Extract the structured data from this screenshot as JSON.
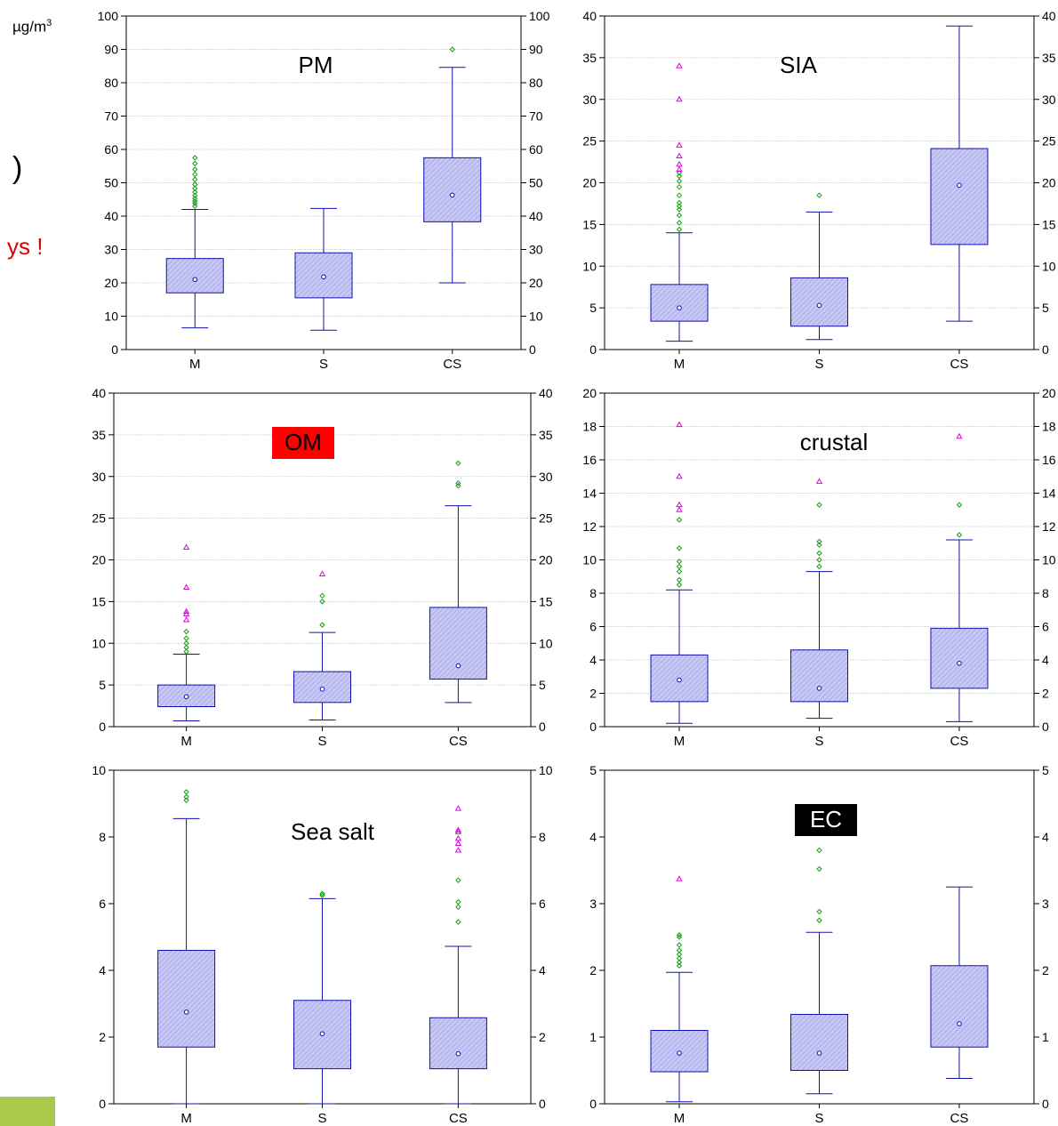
{
  "page": {
    "unit_label": "µg/m",
    "unit_superscript": "3",
    "paren_fragment": ")",
    "days_fragment": "ys !",
    "accent_bar_color": "#a9c94a"
  },
  "chart_style": {
    "box_fill": "#c8c8f4",
    "box_stroke": "#1010b0",
    "whisker_color": "#1010b0",
    "mild_outlier_color": "#15a015",
    "extreme_outlier_color": "#e000e0",
    "grid_color": "#bfbfbf"
  },
  "chart_data": [
    {
      "type": "box",
      "title": "PM",
      "title_style": "plain",
      "categories": [
        "M",
        "S",
        "CS"
      ],
      "ylim": [
        0,
        100
      ],
      "yticks": [
        0,
        10,
        20,
        30,
        40,
        50,
        60,
        70,
        80,
        90,
        100
      ],
      "right_axis": true,
      "grid": true,
      "boxes": [
        {
          "category": "M",
          "whisker_low": 6.5,
          "q1": 17,
          "median": 21,
          "q3": 27.3,
          "whisker_high": 42,
          "mild_outliers": [
            43,
            43.8,
            44.5,
            45.3,
            46.2,
            47.2,
            48.3,
            49.5,
            51,
            52.5,
            54,
            55.8,
            57.5
          ],
          "extreme_outliers": []
        },
        {
          "category": "S",
          "whisker_low": 5.8,
          "q1": 15.5,
          "median": 21.8,
          "q3": 29,
          "whisker_high": 42.3,
          "mild_outliers": [],
          "extreme_outliers": []
        },
        {
          "category": "CS",
          "whisker_low": 20,
          "q1": 38.3,
          "median": 46.3,
          "q3": 57.5,
          "whisker_high": 84.6,
          "mild_outliers": [
            90
          ],
          "extreme_outliers": []
        }
      ]
    },
    {
      "type": "box",
      "title": "SIA",
      "title_style": "plain",
      "categories": [
        "M",
        "S",
        "CS"
      ],
      "ylim": [
        0,
        40
      ],
      "yticks": [
        0,
        5,
        10,
        15,
        20,
        25,
        30,
        35,
        40
      ],
      "right_axis": true,
      "grid": true,
      "boxes": [
        {
          "category": "M",
          "whisker_low": 1,
          "q1": 3.4,
          "median": 5,
          "q3": 7.8,
          "whisker_high": 14,
          "mild_outliers": [
            14.4,
            15.2,
            16.1,
            16.8,
            17.2,
            17.6,
            18.5,
            19.5,
            20.2,
            20.8,
            21.2
          ],
          "extreme_outliers": [
            21.6,
            22.2,
            23.2,
            24.5,
            30,
            34
          ]
        },
        {
          "category": "S",
          "whisker_low": 1.2,
          "q1": 2.8,
          "median": 5.3,
          "q3": 8.6,
          "whisker_high": 16.5,
          "mild_outliers": [
            18.5
          ],
          "extreme_outliers": []
        },
        {
          "category": "CS",
          "whisker_low": 3.4,
          "q1": 12.6,
          "median": 19.7,
          "q3": 24.1,
          "whisker_high": 38.8,
          "mild_outliers": [],
          "extreme_outliers": []
        }
      ]
    },
    {
      "type": "box",
      "title": "OM",
      "title_style": "red",
      "categories": [
        "M",
        "S",
        "CS"
      ],
      "ylim": [
        0,
        40
      ],
      "yticks": [
        0,
        5,
        10,
        15,
        20,
        25,
        30,
        35,
        40
      ],
      "right_axis": true,
      "grid": true,
      "boxes": [
        {
          "category": "M",
          "whisker_low": 0.7,
          "q1": 2.4,
          "median": 3.6,
          "q3": 5,
          "whisker_high": 8.7,
          "mild_outliers": [
            9,
            9.5,
            10,
            10.6,
            11.4
          ],
          "extreme_outliers": [
            12.8,
            13.5,
            13.8,
            16.7,
            21.5
          ]
        },
        {
          "category": "S",
          "whisker_low": 0.8,
          "q1": 2.9,
          "median": 4.5,
          "q3": 6.6,
          "whisker_high": 11.3,
          "mild_outliers": [
            12.2,
            15,
            15.7
          ],
          "extreme_outliers": [
            18.3
          ]
        },
        {
          "category": "CS",
          "whisker_low": 2.9,
          "q1": 5.7,
          "median": 7.3,
          "q3": 14.3,
          "whisker_high": 26.5,
          "mild_outliers": [
            28.9,
            29.2,
            31.6
          ],
          "extreme_outliers": []
        }
      ]
    },
    {
      "type": "box",
      "title": "crustal",
      "title_style": "plain",
      "categories": [
        "M",
        "S",
        "CS"
      ],
      "ylim": [
        0,
        20
      ],
      "yticks": [
        0,
        2,
        4,
        6,
        8,
        10,
        12,
        14,
        16,
        18,
        20
      ],
      "right_axis": true,
      "grid": true,
      "boxes": [
        {
          "category": "M",
          "whisker_low": 0.2,
          "q1": 1.5,
          "median": 2.8,
          "q3": 4.3,
          "whisker_high": 8.2,
          "mild_outliers": [
            8.5,
            8.8,
            9.3,
            9.6,
            9.9,
            10.7,
            12.4
          ],
          "extreme_outliers": [
            13,
            13.3,
            15,
            18.1
          ]
        },
        {
          "category": "S",
          "whisker_low": 0.5,
          "q1": 1.5,
          "median": 2.3,
          "q3": 4.6,
          "whisker_high": 9.3,
          "mild_outliers": [
            9.6,
            10,
            10.4,
            10.9,
            11.1,
            13.3
          ],
          "extreme_outliers": [
            14.7
          ]
        },
        {
          "category": "CS",
          "whisker_low": 0.3,
          "q1": 2.3,
          "median": 3.8,
          "q3": 5.9,
          "whisker_high": 11.2,
          "mild_outliers": [
            11.5,
            13.3
          ],
          "extreme_outliers": [
            17.4
          ]
        }
      ]
    },
    {
      "type": "box",
      "title": "Sea salt",
      "title_style": "plain",
      "categories": [
        "M",
        "S",
        "CS"
      ],
      "ylim": [
        0,
        10
      ],
      "yticks": [
        0,
        2,
        4,
        6,
        8,
        10
      ],
      "right_axis": true,
      "grid": false,
      "boxes": [
        {
          "category": "M",
          "whisker_low": 0,
          "q1": 1.7,
          "median": 2.75,
          "q3": 4.6,
          "whisker_high": 8.55,
          "mild_outliers": [
            9.1,
            9.2,
            9.35
          ],
          "extreme_outliers": []
        },
        {
          "category": "S",
          "whisker_low": 0,
          "q1": 1.05,
          "median": 2.1,
          "q3": 3.1,
          "whisker_high": 6.15,
          "mild_outliers": [
            6.25,
            6.3
          ],
          "extreme_outliers": []
        },
        {
          "category": "CS",
          "whisker_low": 0,
          "q1": 1.05,
          "median": 1.5,
          "q3": 2.58,
          "whisker_high": 4.72,
          "mild_outliers": [
            5.45,
            5.9,
            6.05,
            6.7
          ],
          "extreme_outliers": [
            7.6,
            7.8,
            7.95,
            8.15,
            8.2,
            8.85
          ]
        }
      ]
    },
    {
      "type": "box",
      "title": "EC",
      "title_style": "black",
      "categories": [
        "M",
        "S",
        "CS"
      ],
      "ylim": [
        0,
        5
      ],
      "yticks": [
        0,
        1,
        2,
        3,
        4,
        5
      ],
      "right_axis": true,
      "grid": false,
      "boxes": [
        {
          "category": "M",
          "whisker_low": 0.03,
          "q1": 0.48,
          "median": 0.76,
          "q3": 1.1,
          "whisker_high": 1.97,
          "mild_outliers": [
            2.07,
            2.12,
            2.18,
            2.24,
            2.3,
            2.38,
            2.5,
            2.53
          ],
          "extreme_outliers": [
            3.37
          ]
        },
        {
          "category": "S",
          "whisker_low": 0.15,
          "q1": 0.5,
          "median": 0.76,
          "q3": 1.34,
          "whisker_high": 2.57,
          "mild_outliers": [
            2.75,
            2.88,
            3.52,
            3.8
          ],
          "extreme_outliers": []
        },
        {
          "category": "CS",
          "whisker_low": 0.38,
          "q1": 0.85,
          "median": 1.2,
          "q3": 2.07,
          "whisker_high": 3.25,
          "mild_outliers": [],
          "extreme_outliers": []
        }
      ]
    }
  ]
}
